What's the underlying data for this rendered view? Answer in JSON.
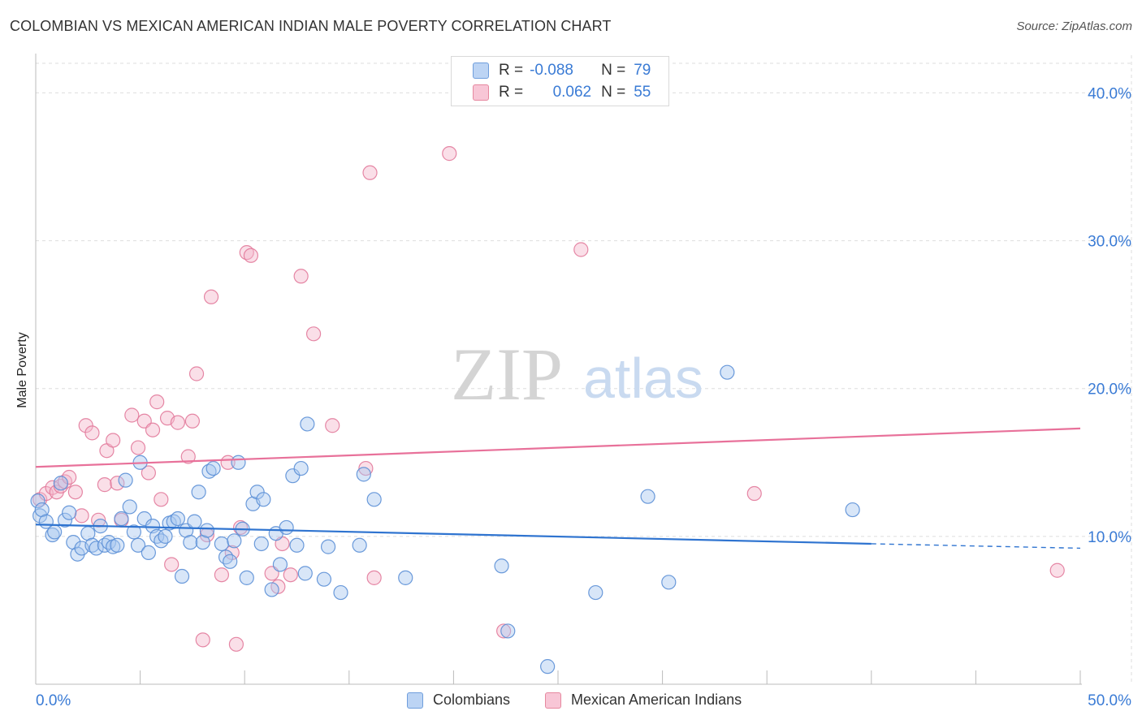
{
  "header": {
    "title": "COLOMBIAN VS MEXICAN AMERICAN INDIAN MALE POVERTY CORRELATION CHART",
    "source": "Source: ZipAtlas.com"
  },
  "watermark": {
    "zip": "ZIP",
    "atlas": "atlas"
  },
  "legend": {
    "rows": [
      {
        "r_label": "R =",
        "r_value": "-0.088",
        "n_label": "N =",
        "n_value": "79"
      },
      {
        "r_label": "R =",
        "r_value": "0.062",
        "n_label": "N =",
        "n_value": "55"
      }
    ]
  },
  "bottom_legend": {
    "items": [
      "Colombians",
      "Mexican American Indians"
    ]
  },
  "colors": {
    "blue_fill": "#a9c8ef",
    "blue_stroke": "#5b8fd6",
    "blue_line": "#2f74d0",
    "pink_fill": "#f5b8cb",
    "pink_stroke": "#e27a9b",
    "pink_line": "#e8719a",
    "axis_text": "#3a7bd5",
    "grid": "#dddddd"
  },
  "chart_data": {
    "type": "scatter",
    "title": "COLOMBIAN VS MEXICAN AMERICAN INDIAN MALE POVERTY CORRELATION CHART",
    "xlabel": "",
    "ylabel": "Male Poverty",
    "xlim": [
      0,
      50
    ],
    "ylim": [
      0,
      42
    ],
    "x_tick_labels": [
      "0.0%",
      "50.0%"
    ],
    "y_ticks": [
      10,
      20,
      30,
      40
    ],
    "y_tick_labels": [
      "10.0%",
      "20.0%",
      "30.0%",
      "40.0%"
    ],
    "grid": true,
    "legend_position": "top-center",
    "series": [
      {
        "name": "Colombians",
        "r": -0.088,
        "n": 79,
        "trend": {
          "x0": 0,
          "y0": 10.8,
          "x1": 40,
          "y1": 9.5,
          "dashed_to_x": 50,
          "dashed_to_y": 9.2
        },
        "points": [
          [
            0.1,
            12.4
          ],
          [
            0.2,
            11.4
          ],
          [
            0.3,
            11.8
          ],
          [
            0.5,
            11.0
          ],
          [
            0.8,
            10.1
          ],
          [
            0.9,
            10.3
          ],
          [
            1.2,
            13.6
          ],
          [
            1.4,
            11.1
          ],
          [
            1.6,
            11.6
          ],
          [
            1.8,
            9.6
          ],
          [
            2.0,
            8.8
          ],
          [
            2.2,
            9.2
          ],
          [
            2.5,
            10.2
          ],
          [
            2.7,
            9.4
          ],
          [
            2.9,
            9.2
          ],
          [
            3.1,
            10.7
          ],
          [
            3.3,
            9.4
          ],
          [
            3.5,
            9.6
          ],
          [
            3.7,
            9.3
          ],
          [
            3.9,
            9.4
          ],
          [
            4.1,
            11.2
          ],
          [
            4.3,
            13.8
          ],
          [
            4.5,
            12.0
          ],
          [
            4.7,
            10.3
          ],
          [
            4.9,
            9.4
          ],
          [
            5.0,
            15.0
          ],
          [
            5.2,
            11.2
          ],
          [
            5.4,
            8.9
          ],
          [
            5.6,
            10.7
          ],
          [
            5.8,
            10.0
          ],
          [
            6.0,
            9.7
          ],
          [
            6.2,
            10.0
          ],
          [
            6.4,
            10.9
          ],
          [
            6.6,
            11.0
          ],
          [
            6.8,
            11.2
          ],
          [
            7.0,
            7.3
          ],
          [
            7.2,
            10.4
          ],
          [
            7.4,
            9.6
          ],
          [
            7.6,
            11.0
          ],
          [
            7.8,
            13.0
          ],
          [
            8.0,
            9.6
          ],
          [
            8.2,
            10.4
          ],
          [
            8.3,
            14.4
          ],
          [
            8.5,
            14.6
          ],
          [
            8.9,
            9.5
          ],
          [
            9.1,
            8.6
          ],
          [
            9.3,
            8.3
          ],
          [
            9.5,
            9.7
          ],
          [
            9.7,
            15.0
          ],
          [
            9.9,
            10.5
          ],
          [
            10.1,
            7.2
          ],
          [
            10.4,
            12.2
          ],
          [
            10.6,
            13.0
          ],
          [
            10.8,
            9.5
          ],
          [
            10.9,
            12.5
          ],
          [
            11.3,
            6.4
          ],
          [
            11.5,
            10.2
          ],
          [
            11.7,
            8.1
          ],
          [
            12.0,
            10.6
          ],
          [
            12.3,
            14.1
          ],
          [
            12.5,
            9.4
          ],
          [
            12.7,
            14.6
          ],
          [
            12.9,
            7.5
          ],
          [
            13.0,
            17.6
          ],
          [
            13.8,
            7.1
          ],
          [
            14.0,
            9.3
          ],
          [
            14.6,
            6.2
          ],
          [
            15.5,
            9.4
          ],
          [
            15.7,
            14.2
          ],
          [
            16.2,
            12.5
          ],
          [
            17.7,
            7.2
          ],
          [
            22.3,
            8.0
          ],
          [
            22.6,
            3.6
          ],
          [
            24.5,
            1.2
          ],
          [
            26.8,
            6.2
          ],
          [
            29.3,
            12.7
          ],
          [
            30.3,
            6.9
          ],
          [
            33.1,
            21.1
          ],
          [
            39.1,
            11.8
          ]
        ]
      },
      {
        "name": "Mexican American Indians",
        "r": 0.062,
        "n": 55,
        "trend": {
          "x0": 0,
          "y0": 14.7,
          "x1": 50,
          "y1": 17.3
        },
        "points": [
          [
            0.2,
            12.5
          ],
          [
            0.5,
            12.9
          ],
          [
            0.8,
            13.3
          ],
          [
            1.0,
            13.0
          ],
          [
            1.2,
            13.4
          ],
          [
            1.4,
            13.7
          ],
          [
            1.6,
            14.0
          ],
          [
            1.9,
            13.0
          ],
          [
            2.2,
            11.4
          ],
          [
            2.4,
            17.5
          ],
          [
            2.7,
            17.0
          ],
          [
            3.0,
            11.1
          ],
          [
            3.3,
            13.5
          ],
          [
            3.4,
            15.8
          ],
          [
            3.7,
            16.5
          ],
          [
            3.9,
            13.6
          ],
          [
            4.1,
            11.1
          ],
          [
            4.6,
            18.2
          ],
          [
            4.9,
            16.0
          ],
          [
            5.2,
            17.8
          ],
          [
            5.4,
            14.3
          ],
          [
            5.6,
            17.2
          ],
          [
            5.8,
            19.1
          ],
          [
            6.0,
            12.5
          ],
          [
            6.3,
            18.0
          ],
          [
            6.5,
            8.1
          ],
          [
            6.8,
            17.7
          ],
          [
            7.3,
            15.4
          ],
          [
            7.5,
            17.8
          ],
          [
            7.7,
            21.0
          ],
          [
            8.0,
            3.0
          ],
          [
            8.2,
            10.1
          ],
          [
            8.4,
            26.2
          ],
          [
            8.9,
            7.4
          ],
          [
            9.2,
            15.0
          ],
          [
            9.4,
            8.9
          ],
          [
            9.6,
            2.7
          ],
          [
            9.8,
            10.6
          ],
          [
            10.1,
            29.2
          ],
          [
            10.3,
            29.0
          ],
          [
            11.3,
            7.5
          ],
          [
            11.6,
            6.6
          ],
          [
            11.8,
            9.5
          ],
          [
            12.2,
            7.4
          ],
          [
            12.7,
            27.6
          ],
          [
            13.3,
            23.7
          ],
          [
            14.2,
            17.5
          ],
          [
            15.8,
            14.6
          ],
          [
            16.0,
            34.6
          ],
          [
            16.2,
            7.2
          ],
          [
            19.8,
            35.9
          ],
          [
            22.4,
            3.6
          ],
          [
            26.1,
            29.4
          ],
          [
            34.4,
            12.9
          ],
          [
            48.9,
            7.7
          ]
        ]
      }
    ]
  }
}
